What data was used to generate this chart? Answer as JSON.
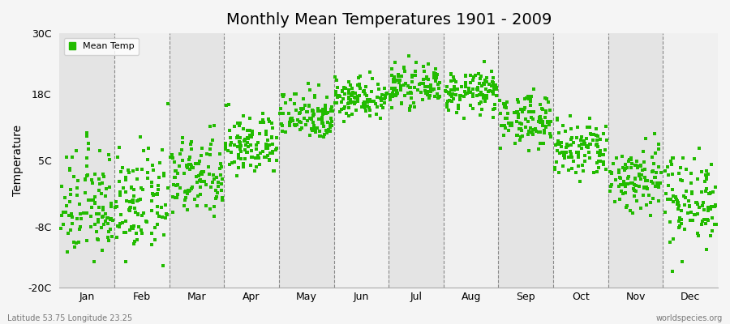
{
  "title": "Monthly Mean Temperatures 1901 - 2009",
  "ylabel": "Temperature",
  "dot_color": "#22bb00",
  "background_color": "#f5f5f5",
  "plot_bg_color_light": "#f0f0f0",
  "plot_bg_color_dark": "#e4e4e4",
  "ylim": [
    -20,
    30
  ],
  "yticks": [
    -20,
    -8,
    5,
    18,
    30
  ],
  "ytick_labels": [
    "-20C",
    "-8C",
    "5C",
    "18C",
    "30C"
  ],
  "months": [
    "Jan",
    "Feb",
    "Mar",
    "Apr",
    "May",
    "Jun",
    "Jul",
    "Aug",
    "Sep",
    "Oct",
    "Nov",
    "Dec"
  ],
  "legend_label": "Mean Temp",
  "footer_left": "Latitude 53.75 Longitude 23.25",
  "footer_right": "worldspecies.org",
  "monthly_means": [
    -4.0,
    -3.5,
    1.5,
    8.0,
    14.0,
    17.5,
    19.5,
    18.5,
    13.0,
    7.0,
    1.5,
    -2.5
  ],
  "monthly_std": [
    5.5,
    5.0,
    4.0,
    3.0,
    2.5,
    2.0,
    1.8,
    2.0,
    2.5,
    3.0,
    3.5,
    4.5
  ],
  "n_years": 109
}
